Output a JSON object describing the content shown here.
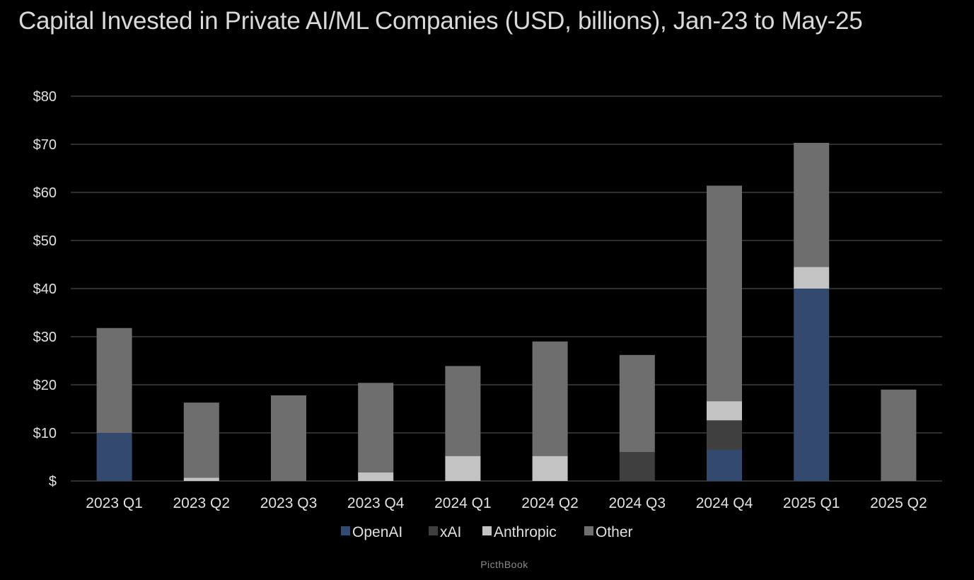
{
  "colors": {
    "background": "#000000",
    "gridline": "#2e2e2e",
    "axis_text": "#e0e0e0",
    "title_text": "#d9d9d9"
  },
  "source_credit": "PicthBook",
  "chart_data": {
    "type": "bar",
    "stacked": true,
    "title": "Capital Invested in Private AI/ML Companies (USD, billions), Jan-23 to May-25",
    "xlabel": "",
    "ylabel": "",
    "categories": [
      "2023 Q1",
      "2023 Q2",
      "2023 Q3",
      "2023 Q4",
      "2024 Q1",
      "2024 Q2",
      "2024 Q3",
      "2024 Q4",
      "2025 Q1",
      "2025 Q2"
    ],
    "ylim": [
      0,
      80
    ],
    "yticks": [
      0,
      10,
      20,
      30,
      40,
      50,
      60,
      70,
      80
    ],
    "ytick_labels": [
      "$",
      "$10",
      "$20",
      "$30",
      "$40",
      "$50",
      "$60",
      "$70",
      "$80"
    ],
    "grid": true,
    "legend_position": "bottom",
    "series": [
      {
        "name": "OpenAI",
        "color": "#34496e",
        "values": [
          10,
          0,
          0,
          0,
          0,
          0,
          0,
          6.6,
          40,
          0
        ]
      },
      {
        "name": "xAI",
        "color": "#3f3f3f",
        "values": [
          0,
          0,
          0,
          0,
          0,
          0,
          6,
          6,
          0,
          0
        ]
      },
      {
        "name": "Anthropic",
        "color": "#c3c3c3",
        "values": [
          0,
          0.7,
          0,
          1.8,
          5.2,
          5.2,
          0,
          4,
          4.5,
          0
        ]
      },
      {
        "name": "Other",
        "color": "#6e6e6e",
        "values": [
          21.8,
          15.6,
          17.8,
          18.6,
          18.7,
          23.8,
          20.2,
          44.8,
          25.8,
          19
        ]
      }
    ]
  }
}
